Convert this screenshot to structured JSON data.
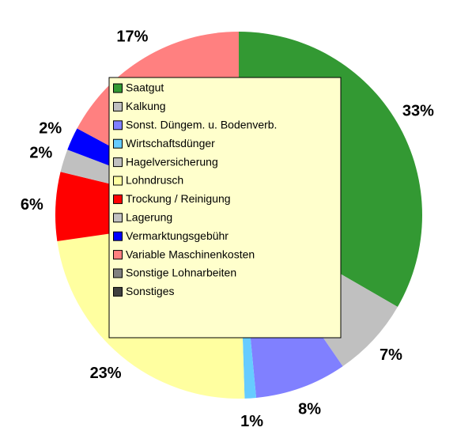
{
  "chart_data": {
    "type": "pie",
    "categories": [
      "Saatgut",
      "Kalkung",
      "Sonst. Düngem. u. Bodenverb.",
      "Wirtschaftsdünger",
      "Hagelversicherung",
      "Lohndrusch",
      "Trockung / Reinigung",
      "Lagerung",
      "Vermarktungsgebühr",
      "Variable Maschinenkosten",
      "Sonstige Lohnarbeiten",
      "Sonstiges"
    ],
    "values": [
      33,
      7,
      8,
      1,
      0,
      23,
      6,
      2,
      2,
      17,
      0,
      0
    ],
    "value_labels": [
      "33%",
      "7%",
      "8%",
      "1%",
      null,
      "23%",
      "6%",
      "2%",
      "2%",
      "17%",
      null,
      null
    ],
    "colors": [
      "#339933",
      "#c0c0c0",
      "#8080ff",
      "#66ccff",
      "#c0c0c0",
      "#ffffa0",
      "#ff0000",
      "#c0c0c0",
      "#0000ff",
      "#ff8080",
      "#808080",
      "#404040"
    ],
    "legend": "center"
  }
}
